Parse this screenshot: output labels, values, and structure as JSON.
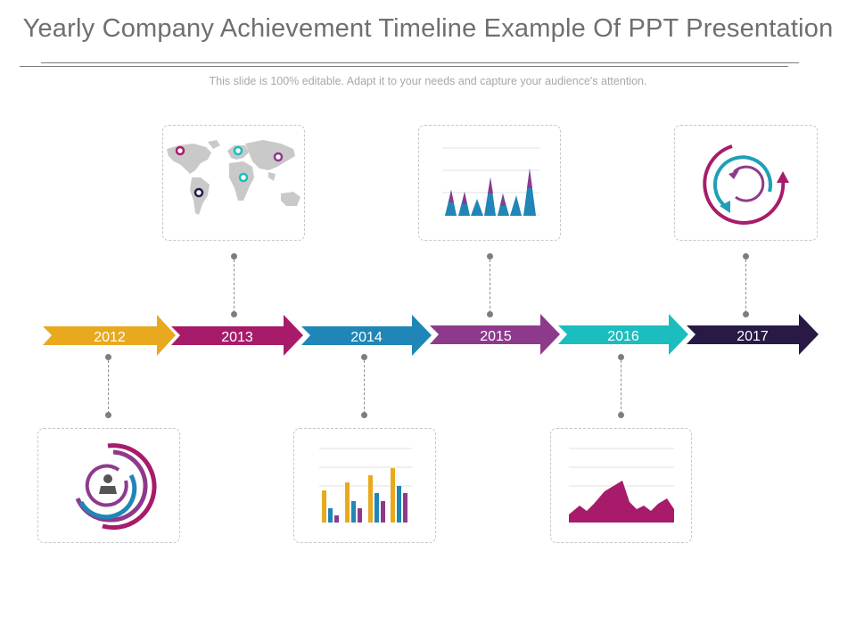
{
  "header": {
    "title": "Yearly Company Achievement Timeline Example Of PPT Presentation",
    "subtitle": "This slide is 100% editable. Adapt it to your needs and capture your audience's attention."
  },
  "timeline": {
    "years": [
      {
        "label": "2012",
        "color": "#e8a91f",
        "card": "below",
        "icon": "donut-rings-person-icon"
      },
      {
        "label": "2013",
        "color": "#a81b6a",
        "card": "above",
        "icon": "world-map-pins-icon"
      },
      {
        "label": "2014",
        "color": "#1f86b7",
        "card": "below",
        "icon": "bar-chart-icon"
      },
      {
        "label": "2015",
        "color": "#8e3a8c",
        "card": "above",
        "icon": "cone-chart-icon"
      },
      {
        "label": "2016",
        "color": "#1cbdbf",
        "card": "below",
        "icon": "area-chart-icon"
      },
      {
        "label": "2017",
        "color": "#281a45",
        "card": "above",
        "icon": "circular-arrows-icon"
      }
    ]
  },
  "palette": {
    "yellow": "#e8a91f",
    "magenta": "#a81b6a",
    "blue": "#1f86b7",
    "purple": "#8e3a8c",
    "teal": "#1cbdbf",
    "navy": "#281a45"
  }
}
